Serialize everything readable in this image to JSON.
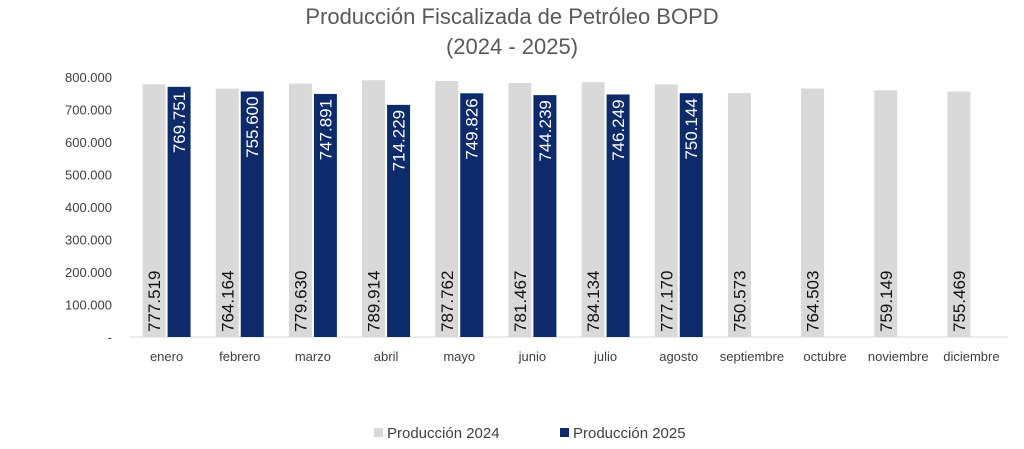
{
  "chart_data": {
    "type": "bar",
    "title": "Producción Fiscalizada de Petróleo BOPD",
    "subtitle": "(2024 - 2025)",
    "categories": [
      "enero",
      "febrero",
      "marzo",
      "abril",
      "mayo",
      "junio",
      "julio",
      "agosto",
      "septiembre",
      "octubre",
      "noviembre",
      "diciembre"
    ],
    "series": [
      {
        "name": "Producción 2024",
        "color": "#d9d9d9",
        "values": [
          777519,
          764164,
          779630,
          789914,
          787762,
          781467,
          784134,
          777170,
          750573,
          764503,
          759149,
          755469
        ],
        "labels": [
          "777.519",
          "764.164",
          "779.630",
          "789.914",
          "787.762",
          "781.467",
          "784.134",
          "777.170",
          "750.573",
          "764.503",
          "759.149",
          "755.469"
        ]
      },
      {
        "name": "Producción 2025",
        "color": "#0d2a6b",
        "values": [
          769751,
          755600,
          747891,
          714229,
          749826,
          744239,
          746249,
          750144,
          null,
          null,
          null,
          null
        ],
        "labels": [
          "769.751",
          "755.600",
          "747.891",
          "714.229",
          "749.826",
          "744.239",
          "746.249",
          "750.144",
          "",
          "",
          "",
          ""
        ]
      }
    ],
    "y_ticks": [
      "-",
      "100.000",
      "200.000",
      "300.000",
      "400.000",
      "500.000",
      "600.000",
      "700.000",
      "800.000"
    ],
    "ylim": [
      0,
      800000
    ],
    "grid": false,
    "legend_position": "bottom"
  }
}
